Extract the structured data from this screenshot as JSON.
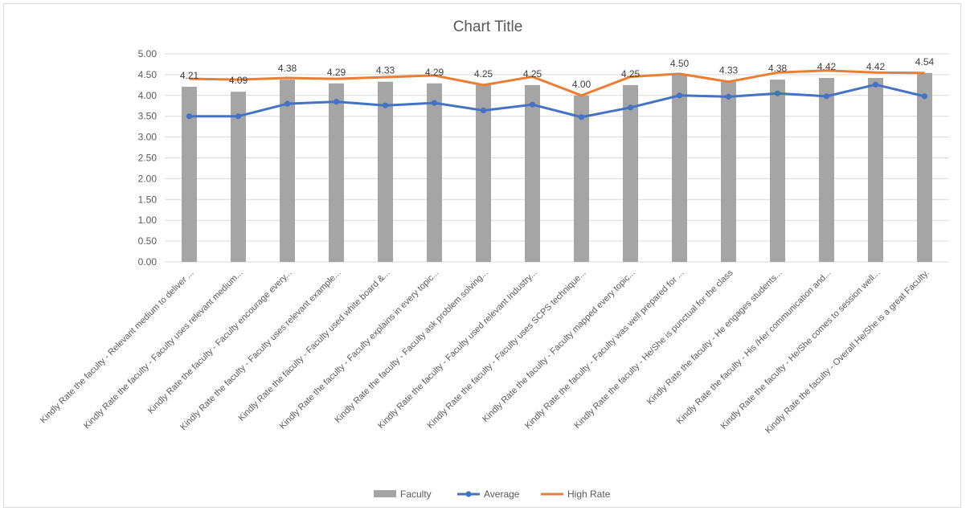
{
  "chart_data": {
    "type": "bar",
    "title": "Chart Title",
    "ylim": [
      0,
      5
    ],
    "ytick_step": 0.5,
    "yticks": [
      "0.00",
      "0.50",
      "1.00",
      "1.50",
      "2.00",
      "2.50",
      "3.00",
      "3.50",
      "4.00",
      "4.50",
      "5.00"
    ],
    "grid": true,
    "legend_position": "bottom",
    "categories": [
      "Kindly Rate the faculty - Relevant medium to deliver ...",
      "Kindly Rate the faculty - Faculty uses relevant medium...",
      "Kindly Rate the faculty - Faculty encourage every...",
      "Kindly Rate the faculty - Faculty uses relevant example...",
      "Kindly Rate the faculty - Faculty used white board &...",
      "Kindly Rate the faculty - Faculty explains in every topic...",
      "Kindly Rate the faculty - Faculty ask problem solving...",
      "Kindly Rate the faculty - Faculty used relevant Industry...",
      "Kindly Rate the faculty - Faculty uses SCPS technique...",
      "Kindly Rate the faculty - Faculty mapped every topic...",
      "Kindly Rate the faculty - Faculty was well prepared for ...",
      "Kindly Rate the faculty - He/She is punctual for the class",
      "Kindly Rate the faculty - He engages students...",
      "Kindly Rate the faculty - His /Her communication and...",
      "Kindly Rate the faculty - He/She comes to session well...",
      "Kindly Rate the faculty - Overall He/She is a great Faculty."
    ],
    "series": [
      {
        "name": "Faculty",
        "kind": "bar",
        "color": "#a5a5a5",
        "values": [
          4.21,
          4.09,
          4.38,
          4.29,
          4.33,
          4.29,
          4.25,
          4.25,
          4.0,
          4.25,
          4.5,
          4.33,
          4.38,
          4.42,
          4.42,
          4.54
        ],
        "labels": [
          "4.21",
          "4.09",
          "4.38",
          "4.29",
          "4.33",
          "4.29",
          "4.25",
          "4.25",
          "4.00",
          "4.25",
          "4.50",
          "4.33",
          "4.38",
          "4.42",
          "4.42",
          "4.54"
        ]
      },
      {
        "name": "Average",
        "kind": "line",
        "color": "#4472c4",
        "marker": "circle",
        "values": [
          3.5,
          3.5,
          3.8,
          3.85,
          3.76,
          3.82,
          3.64,
          3.78,
          3.48,
          3.71,
          4.0,
          3.97,
          4.05,
          3.98,
          4.26,
          3.98
        ]
      },
      {
        "name": "High Rate",
        "kind": "line",
        "color": "#ed7d31",
        "marker": "none",
        "values": [
          4.4,
          4.38,
          4.42,
          4.4,
          4.44,
          4.48,
          4.25,
          4.45,
          4.0,
          4.45,
          4.52,
          4.33,
          4.55,
          4.6,
          4.55,
          4.54
        ]
      }
    ]
  }
}
